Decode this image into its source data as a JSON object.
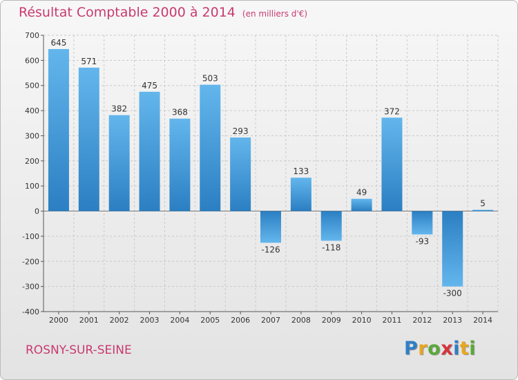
{
  "header": {
    "title": "Résultat Comptable 2000 à 2014",
    "unit": "(en milliers d'€)"
  },
  "footer": {
    "commune": "ROSNY-SUR-SEINE",
    "logo_text": "Proxiti",
    "logo_letters": [
      {
        "ch": "P",
        "color": "#2e7fc6"
      },
      {
        "ch": "r",
        "color": "#e9a61f"
      },
      {
        "ch": "o",
        "color": "#5aa83a"
      },
      {
        "ch": "x",
        "color": "#d5343c"
      },
      {
        "ch": "i",
        "color": "#2e7fc6"
      },
      {
        "ch": "t",
        "color": "#e9a61f"
      },
      {
        "ch": "i",
        "color": "#5aa83a"
      }
    ]
  },
  "colors": {
    "bar_dark": "#2b7fc2",
    "bar_light": "#63b6ec",
    "title": "#c83a6e"
  },
  "chart_data": {
    "type": "bar",
    "title": "Résultat Comptable 2000 à 2014",
    "subtitle": "(en milliers d'€)",
    "xlabel": "",
    "ylabel": "",
    "categories": [
      "2000",
      "2001",
      "2002",
      "2003",
      "2004",
      "2005",
      "2006",
      "2007",
      "2008",
      "2009",
      "2010",
      "2011",
      "2012",
      "2013",
      "2014"
    ],
    "values": [
      645,
      571,
      382,
      475,
      368,
      503,
      293,
      -126,
      133,
      -118,
      49,
      372,
      -93,
      -300,
      5
    ],
    "labels": [
      "645",
      "571",
      "382",
      "475",
      "368",
      "503",
      "293",
      "-126",
      "133",
      "-118",
      "49",
      "372",
      "-93",
      "-300",
      "5"
    ],
    "ylim": [
      -400,
      700
    ],
    "yticks": [
      -400,
      -300,
      -200,
      -100,
      0,
      100,
      200,
      300,
      400,
      500,
      600,
      700
    ],
    "ytick_labels": [
      "-400",
      "-300",
      "-200",
      "-100",
      "0",
      "100",
      "200",
      "300",
      "400",
      "500",
      "600",
      "700"
    ],
    "grid": true
  }
}
